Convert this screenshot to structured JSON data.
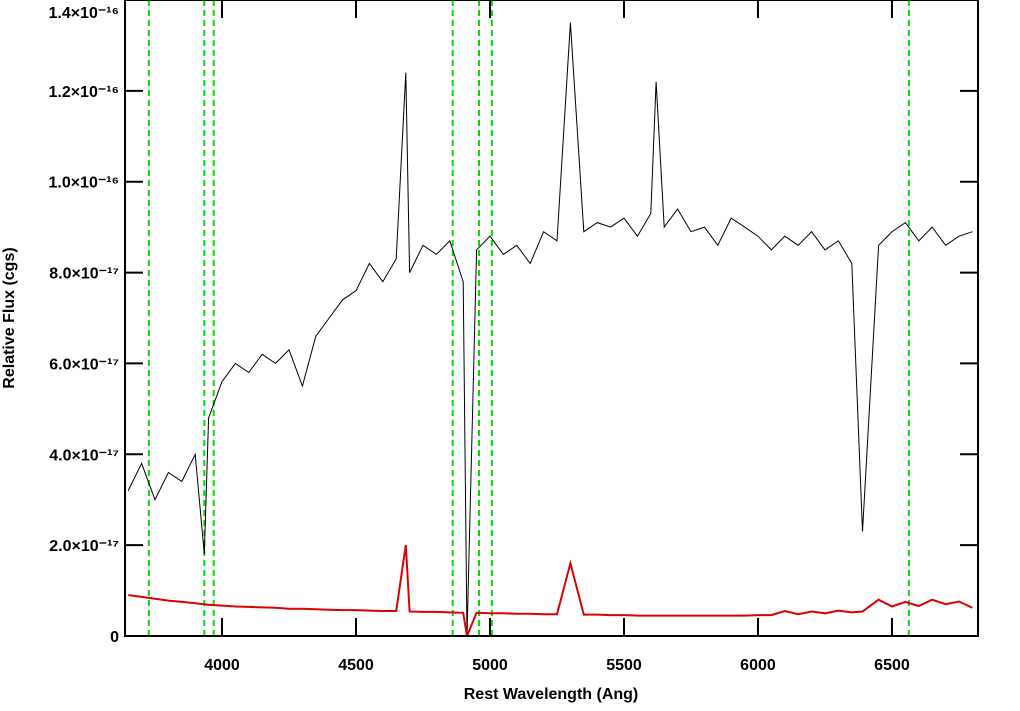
{
  "chart_data": {
    "type": "line",
    "xlabel": "Rest Wavelength (Ang)",
    "ylabel": "Relative Flux (cgs)",
    "xlim": [
      3638,
      6821
    ],
    "ylim": [
      0,
      1.4e-16
    ],
    "xticks": [
      4000,
      4500,
      5000,
      5500,
      6000,
      6500
    ],
    "yticks": [
      0,
      {
        "value": 2e-17,
        "label": "2.0×10⁻¹⁷"
      },
      {
        "value": 4e-17,
        "label": "4.0×10⁻¹⁷"
      },
      {
        "value": 6e-17,
        "label": "6.0×10⁻¹⁷"
      },
      {
        "value": 8e-17,
        "label": "8.0×10⁻¹⁷"
      },
      {
        "value": 1e-16,
        "label": "1.0×10⁻¹⁶"
      },
      {
        "value": 1.2e-16,
        "label": "1.2×10⁻¹⁶"
      },
      {
        "value": 1.4e-16,
        "label": "1.4×10⁻¹⁶"
      }
    ],
    "x": [
      3650,
      3700,
      3750,
      3800,
      3850,
      3900,
      3934,
      3950,
      4000,
      4050,
      4100,
      4150,
      4200,
      4250,
      4300,
      4350,
      4400,
      4450,
      4500,
      4550,
      4600,
      4650,
      4686,
      4700,
      4750,
      4800,
      4850,
      4900,
      4914,
      4950,
      5000,
      5050,
      5100,
      5150,
      5200,
      5250,
      5300,
      5350,
      5400,
      5450,
      5500,
      5550,
      5600,
      5620,
      5650,
      5700,
      5750,
      5800,
      5850,
      5900,
      5950,
      6000,
      6050,
      6100,
      6150,
      6200,
      6250,
      6300,
      6350,
      6390,
      6450,
      6500,
      6550,
      6600,
      6650,
      6700,
      6750,
      6800
    ],
    "series": [
      {
        "color": "#000000",
        "values": [
          3.2e-17,
          3.8e-17,
          3e-17,
          3.6e-17,
          3.4e-17,
          4e-17,
          1.8e-17,
          4.8e-17,
          5.6e-17,
          6e-17,
          5.8e-17,
          6.2e-17,
          6e-17,
          6.3e-17,
          5.5e-17,
          6.6e-17,
          7e-17,
          7.4e-17,
          7.6e-17,
          8.2e-17,
          7.8e-17,
          8.3e-17,
          1.24e-16,
          8e-17,
          8.6e-17,
          8.4e-17,
          8.7e-17,
          7.8e-17,
          0,
          8.5e-17,
          8.8e-17,
          8.4e-17,
          8.6e-17,
          8.2e-17,
          8.9e-17,
          8.7e-17,
          1.35e-16,
          8.9e-17,
          9.1e-17,
          9e-17,
          9.2e-17,
          8.8e-17,
          9.3e-17,
          1.22e-16,
          9e-17,
          9.4e-17,
          8.9e-17,
          9e-17,
          8.6e-17,
          9.2e-17,
          9e-17,
          8.8e-17,
          8.5e-17,
          8.8e-17,
          8.6e-17,
          8.9e-17,
          8.5e-17,
          8.7e-17,
          8.2e-17,
          2.3e-17,
          8.6e-17,
          8.9e-17,
          9.1e-17,
          8.7e-17,
          9e-17,
          8.6e-17,
          8.8e-17,
          8.9e-17
        ]
      },
      {
        "color": "#dd0000",
        "values": [
          9e-18,
          8.6e-18,
          8.2e-18,
          7.8e-18,
          7.5e-18,
          7.2e-18,
          7e-18,
          6.9e-18,
          6.7e-18,
          6.5e-18,
          6.4e-18,
          6.3e-18,
          6.2e-18,
          6e-18,
          6e-18,
          5.9e-18,
          5.8e-18,
          5.7e-18,
          5.7e-18,
          5.6e-18,
          5.5e-18,
          5.5e-18,
          2e-17,
          5.4e-18,
          5.3e-18,
          5.3e-18,
          5.2e-18,
          5.1e-18,
          0,
          5.1e-18,
          5e-18,
          5e-18,
          4.9e-18,
          4.9e-18,
          4.8e-18,
          4.8e-18,
          1.6e-17,
          4.7e-18,
          4.7e-18,
          4.6e-18,
          4.6e-18,
          4.5e-18,
          4.5e-18,
          4.5e-18,
          4.5e-18,
          4.5e-18,
          4.5e-18,
          4.5e-18,
          4.5e-18,
          4.5e-18,
          4.5e-18,
          4.6e-18,
          4.6e-18,
          5.5e-18,
          4.8e-18,
          5.4e-18,
          5e-18,
          5.6e-18,
          5.2e-18,
          5.4e-18,
          8e-18,
          6.5e-18,
          7.5e-18,
          6.6e-18,
          8e-18,
          7e-18,
          7.6e-18,
          6.2e-18
        ]
      }
    ],
    "vlines": {
      "x": [
        3727,
        3934,
        3969,
        4861,
        4959,
        5007,
        6563
      ],
      "color": "#00dd00"
    }
  }
}
